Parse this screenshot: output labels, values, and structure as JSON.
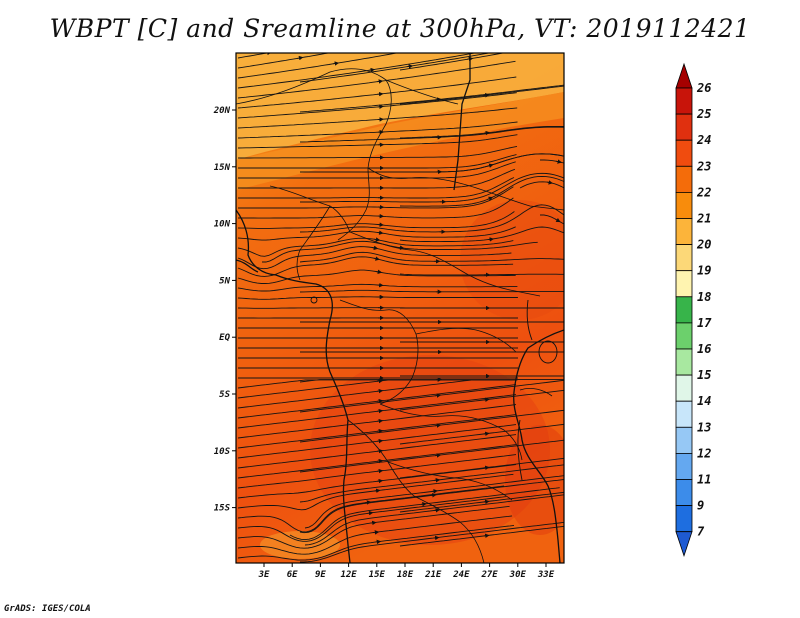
{
  "title": "WBPT [C] and Sreamline at 300hPa, VT: 2019112421",
  "credit": "GrADS: IGES/COLA",
  "map": {
    "type": "filled-contour-with-streamlines",
    "variable": "WBPT",
    "units": "C",
    "level": "300hPa",
    "valid_time": "2019112421",
    "lat_labels": [
      "20N",
      "15N",
      "10N",
      "5N",
      "EQ",
      "5S",
      "10S",
      "15S"
    ],
    "lon_labels": [
      "3E",
      "6E",
      "9E",
      "12E",
      "15E",
      "18E",
      "21E",
      "24E",
      "27E",
      "30E",
      "33E"
    ]
  },
  "colorbar": {
    "labels": [
      "26",
      "25",
      "24",
      "23",
      "22",
      "21",
      "20",
      "19",
      "18",
      "17",
      "16",
      "15",
      "14",
      "13",
      "12",
      "11",
      "9",
      "7"
    ],
    "colors": [
      "#a50000",
      "#c8140a",
      "#e0300f",
      "#f04c0f",
      "#f46c0a",
      "#f88c0c",
      "#fcb43a",
      "#fcd878",
      "#fff4b0",
      "#37b44a",
      "#6cd06c",
      "#a8e8a0",
      "#e0f6e8",
      "#c8e6fa",
      "#96c8f5",
      "#64a8f0",
      "#3c8cea",
      "#1e6ee0",
      "#1e5ad2"
    ]
  }
}
